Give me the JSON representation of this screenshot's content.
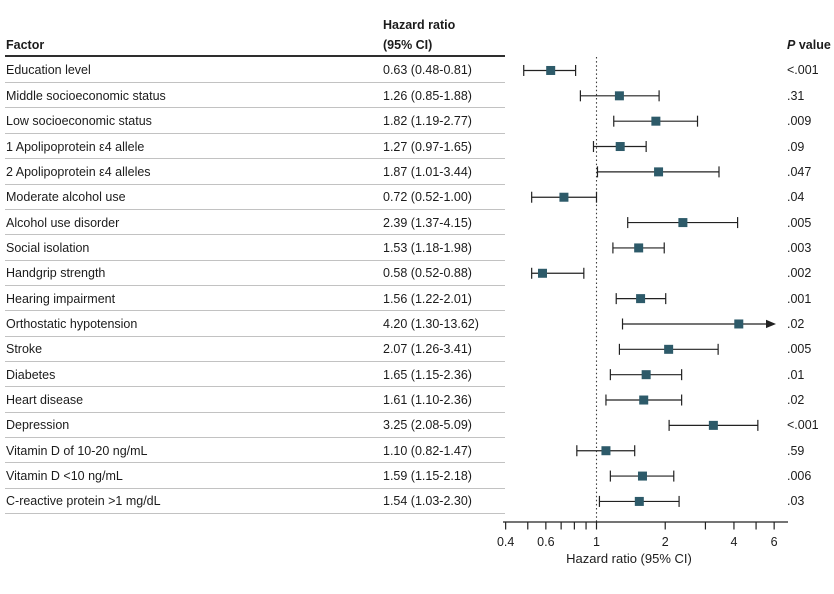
{
  "table": {
    "factor_header": "Factor",
    "hr_header_line1": "Hazard ratio",
    "hr_header_line2": "(95% CI)",
    "p_header_p": "P",
    "p_header_rest": " value"
  },
  "chart_data": {
    "type": "scatter",
    "variant": "forest-plot",
    "title": "",
    "xlabel": "Hazard ratio (95% CI)",
    "x_scale": "log",
    "x_range": [
      0.38,
      7.0
    ],
    "reference_line": 1,
    "x_ticks_major": [
      0.4,
      0.6,
      1,
      2,
      4,
      6
    ],
    "x_tick_labels": [
      "0.4",
      "0.6",
      "1",
      "2",
      "4",
      "6"
    ],
    "x_ticks_all": [
      0.4,
      0.5,
      0.6,
      0.7,
      0.8,
      0.9,
      1,
      2,
      3,
      4,
      5,
      6
    ],
    "marker_color": "#2d5a69",
    "line_color": "#222222",
    "grid": false,
    "rows": [
      {
        "factor": "Education level",
        "hr_ci": "0.63 (0.48-0.81)",
        "p": "<.001",
        "hr": 0.63,
        "lo": 0.48,
        "hi": 0.81
      },
      {
        "factor": "Middle socioeconomic status",
        "hr_ci": "1.26 (0.85-1.88)",
        "p": ".31",
        "hr": 1.26,
        "lo": 0.85,
        "hi": 1.88
      },
      {
        "factor": "Low socioeconomic status",
        "hr_ci": "1.82 (1.19-2.77)",
        "p": ".009",
        "hr": 1.82,
        "lo": 1.19,
        "hi": 2.77
      },
      {
        "factor": "1 Apolipoprotein ε4 allele",
        "hr_ci": "1.27 (0.97-1.65)",
        "p": ".09",
        "hr": 1.27,
        "lo": 0.97,
        "hi": 1.65
      },
      {
        "factor": "2 Apolipoprotein ε4 alleles",
        "hr_ci": "1.87 (1.01-3.44)",
        "p": ".047",
        "hr": 1.87,
        "lo": 1.01,
        "hi": 3.44
      },
      {
        "factor": "Moderate alcohol use",
        "hr_ci": "0.72 (0.52-1.00)",
        "p": ".04",
        "hr": 0.72,
        "lo": 0.52,
        "hi": 1.0
      },
      {
        "factor": "Alcohol use disorder",
        "hr_ci": "2.39 (1.37-4.15)",
        "p": ".005",
        "hr": 2.39,
        "lo": 1.37,
        "hi": 4.15
      },
      {
        "factor": "Social isolation",
        "hr_ci": "1.53 (1.18-1.98)",
        "p": ".003",
        "hr": 1.53,
        "lo": 1.18,
        "hi": 1.98
      },
      {
        "factor": "Handgrip strength",
        "hr_ci": "0.58 (0.52-0.88)",
        "p": ".002",
        "hr": 0.58,
        "lo": 0.52,
        "hi": 0.88
      },
      {
        "factor": "Hearing impairment",
        "hr_ci": "1.56 (1.22-2.01)",
        "p": ".001",
        "hr": 1.56,
        "lo": 1.22,
        "hi": 2.01
      },
      {
        "factor": "Orthostatic hypotension",
        "hr_ci": "4.20 (1.30-13.62)",
        "p": ".02",
        "hr": 4.2,
        "lo": 1.3,
        "hi": 13.62,
        "clipped_high": true
      },
      {
        "factor": "Stroke",
        "hr_ci": "2.07 (1.26-3.41)",
        "p": ".005",
        "hr": 2.07,
        "lo": 1.26,
        "hi": 3.41
      },
      {
        "factor": "Diabetes",
        "hr_ci": "1.65 (1.15-2.36)",
        "p": ".01",
        "hr": 1.65,
        "lo": 1.15,
        "hi": 2.36
      },
      {
        "factor": "Heart disease",
        "hr_ci": "1.61 (1.10-2.36)",
        "p": ".02",
        "hr": 1.61,
        "lo": 1.1,
        "hi": 2.36
      },
      {
        "factor": "Depression",
        "hr_ci": "3.25 (2.08-5.09)",
        "p": "<.001",
        "hr": 3.25,
        "lo": 2.08,
        "hi": 5.09
      },
      {
        "factor": "Vitamin D of 10-20 ng/mL",
        "hr_ci": "1.10 (0.82-1.47)",
        "p": ".59",
        "hr": 1.1,
        "lo": 0.82,
        "hi": 1.47
      },
      {
        "factor": "Vitamin D <10 ng/mL",
        "hr_ci": "1.59 (1.15-2.18)",
        "p": ".006",
        "hr": 1.59,
        "lo": 1.15,
        "hi": 2.18
      },
      {
        "factor": "C-reactive protein >1 mg/dL",
        "hr_ci": "1.54 (1.03-2.30)",
        "p": ".03",
        "hr": 1.54,
        "lo": 1.03,
        "hi": 2.3
      }
    ]
  }
}
